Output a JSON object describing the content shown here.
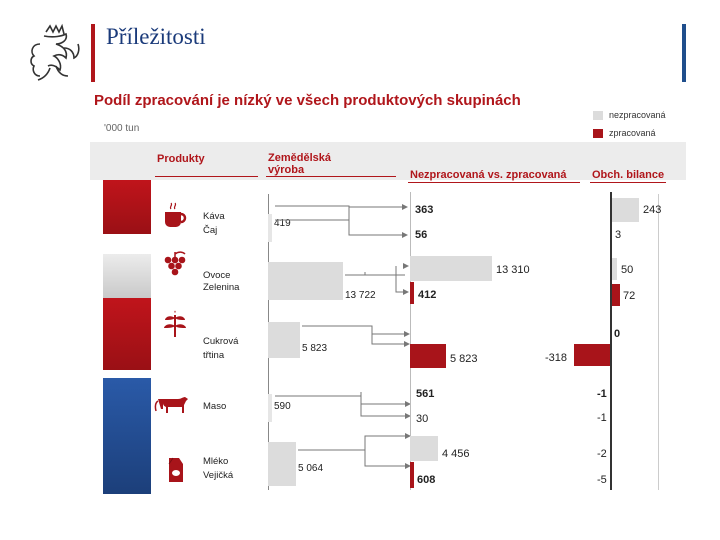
{
  "slide": {
    "title": "Příležitosti"
  },
  "chart_data": {
    "type": "bar",
    "title": "Podíl zpracování je nízký ve všech produktových skupinách",
    "unit": "'000 tun",
    "legend": [
      {
        "label": "nezpracovaná",
        "color": "#dcdcdc"
      },
      {
        "label": "zpracovaná",
        "color": "#a8141a"
      }
    ],
    "columns": {
      "products": "Produkty",
      "production": "Zemědělská výroba",
      "split": "Nezpracovaná vs. zpracovaná",
      "balance": "Obch. bilance"
    },
    "categories": [
      {
        "name_1": "Káva",
        "name_2": "Čaj",
        "production": 419,
        "production_label": "419",
        "unprocessed": 363,
        "unprocessed_label": "363",
        "processed": 56,
        "processed_label": "56",
        "balance_unprocessed": 243,
        "balance_unprocessed_label": "243",
        "balance_processed": 3,
        "balance_processed_label": "3"
      },
      {
        "name_1": "Ovoce",
        "name_2": "Zelenina",
        "production": 13722,
        "production_label": "13 722",
        "unprocessed": 13310,
        "unprocessed_label": "13 310",
        "processed": 412,
        "processed_label": "412",
        "balance_unprocessed": 50,
        "balance_unprocessed_label": "50",
        "balance_processed": 72,
        "balance_processed_label": "72"
      },
      {
        "name_1": "Cukrová",
        "name_2": "třtina",
        "production": 5823,
        "production_label": "5 823",
        "unprocessed": 0,
        "unprocessed_label": "",
        "processed": 5823,
        "processed_label": "5 823",
        "balance_unprocessed": 0,
        "balance_unprocessed_label": "0",
        "balance_processed": -318,
        "balance_processed_label": "-318"
      },
      {
        "name_1": "Maso",
        "name_2": "",
        "production": 590,
        "production_label": "590",
        "unprocessed": 561,
        "unprocessed_label": "561",
        "processed": 30,
        "processed_label": "30",
        "balance_unprocessed": -1,
        "balance_unprocessed_label": "-1",
        "balance_processed": -1,
        "balance_processed_label": "-1"
      },
      {
        "name_1": "Mléko",
        "name_2": "Vejičká",
        "production": 5064,
        "production_label": "5 064",
        "unprocessed": 4456,
        "unprocessed_label": "4 456",
        "processed": 608,
        "processed_label": "608",
        "balance_unprocessed": -2,
        "balance_unprocessed_label": "-2",
        "balance_processed": -5,
        "balance_processed_label": "-5"
      }
    ],
    "icons": [
      "cup-icon",
      "grapes-icon",
      "plant-icon",
      "cow-icon",
      "milk-carton-icon"
    ]
  }
}
